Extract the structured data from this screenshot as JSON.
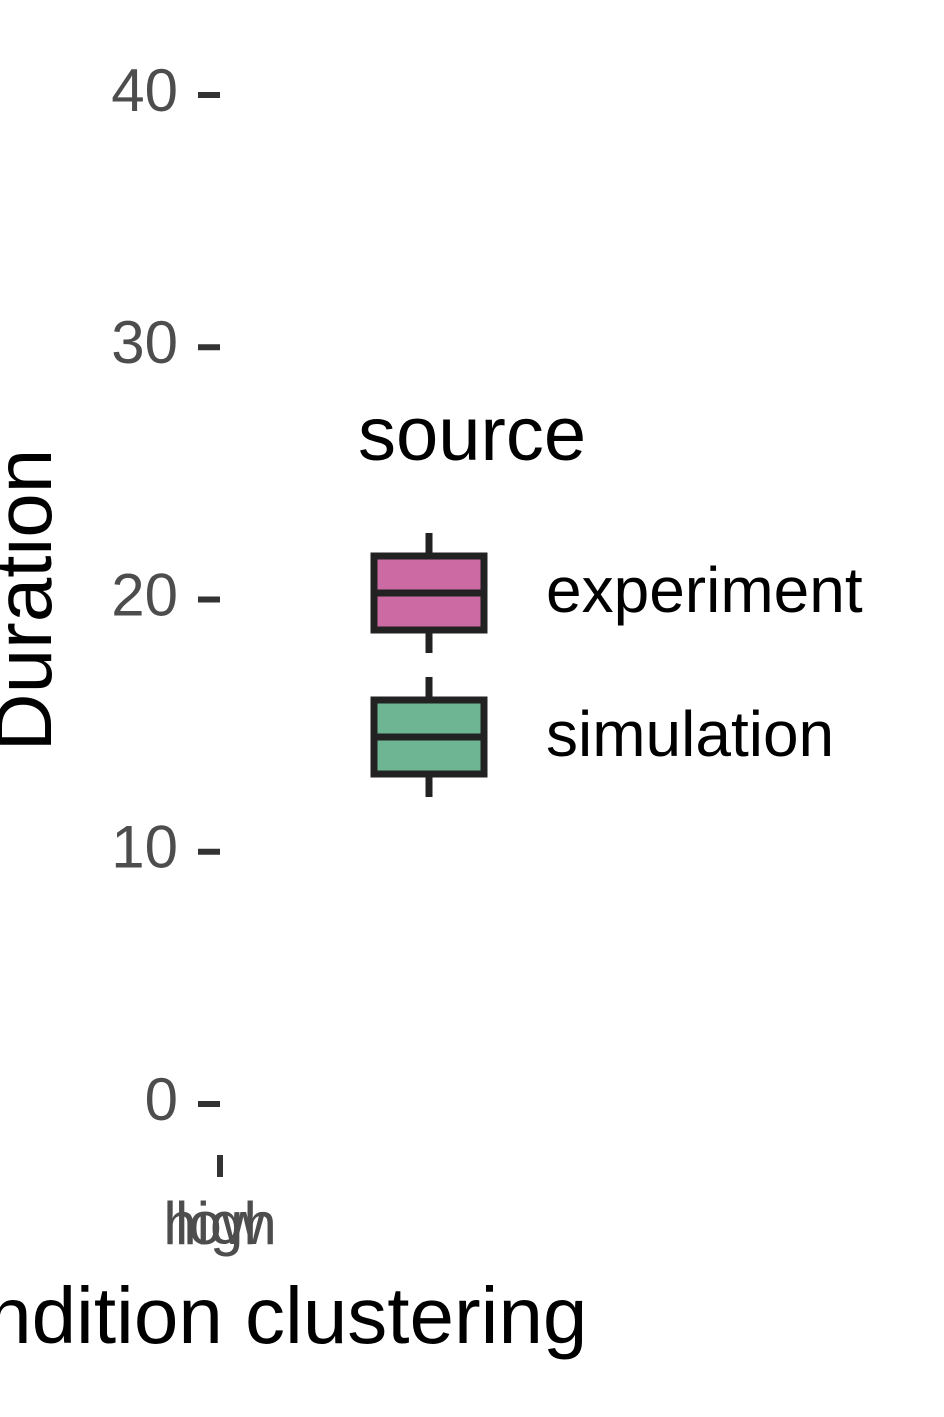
{
  "chart_data": {
    "type": "box",
    "x_label": "condition clustering",
    "y_label": "Duration",
    "categories": [
      "high",
      "low"
    ],
    "ylim": [
      0,
      40
    ],
    "yticks": [
      0,
      10,
      20,
      30,
      40
    ],
    "legend": {
      "title": "source",
      "position": "right"
    },
    "series": [
      {
        "name": "experiment",
        "color": "#cc6aa3"
      },
      {
        "name": "simulation",
        "color": "#6db593"
      }
    ]
  }
}
